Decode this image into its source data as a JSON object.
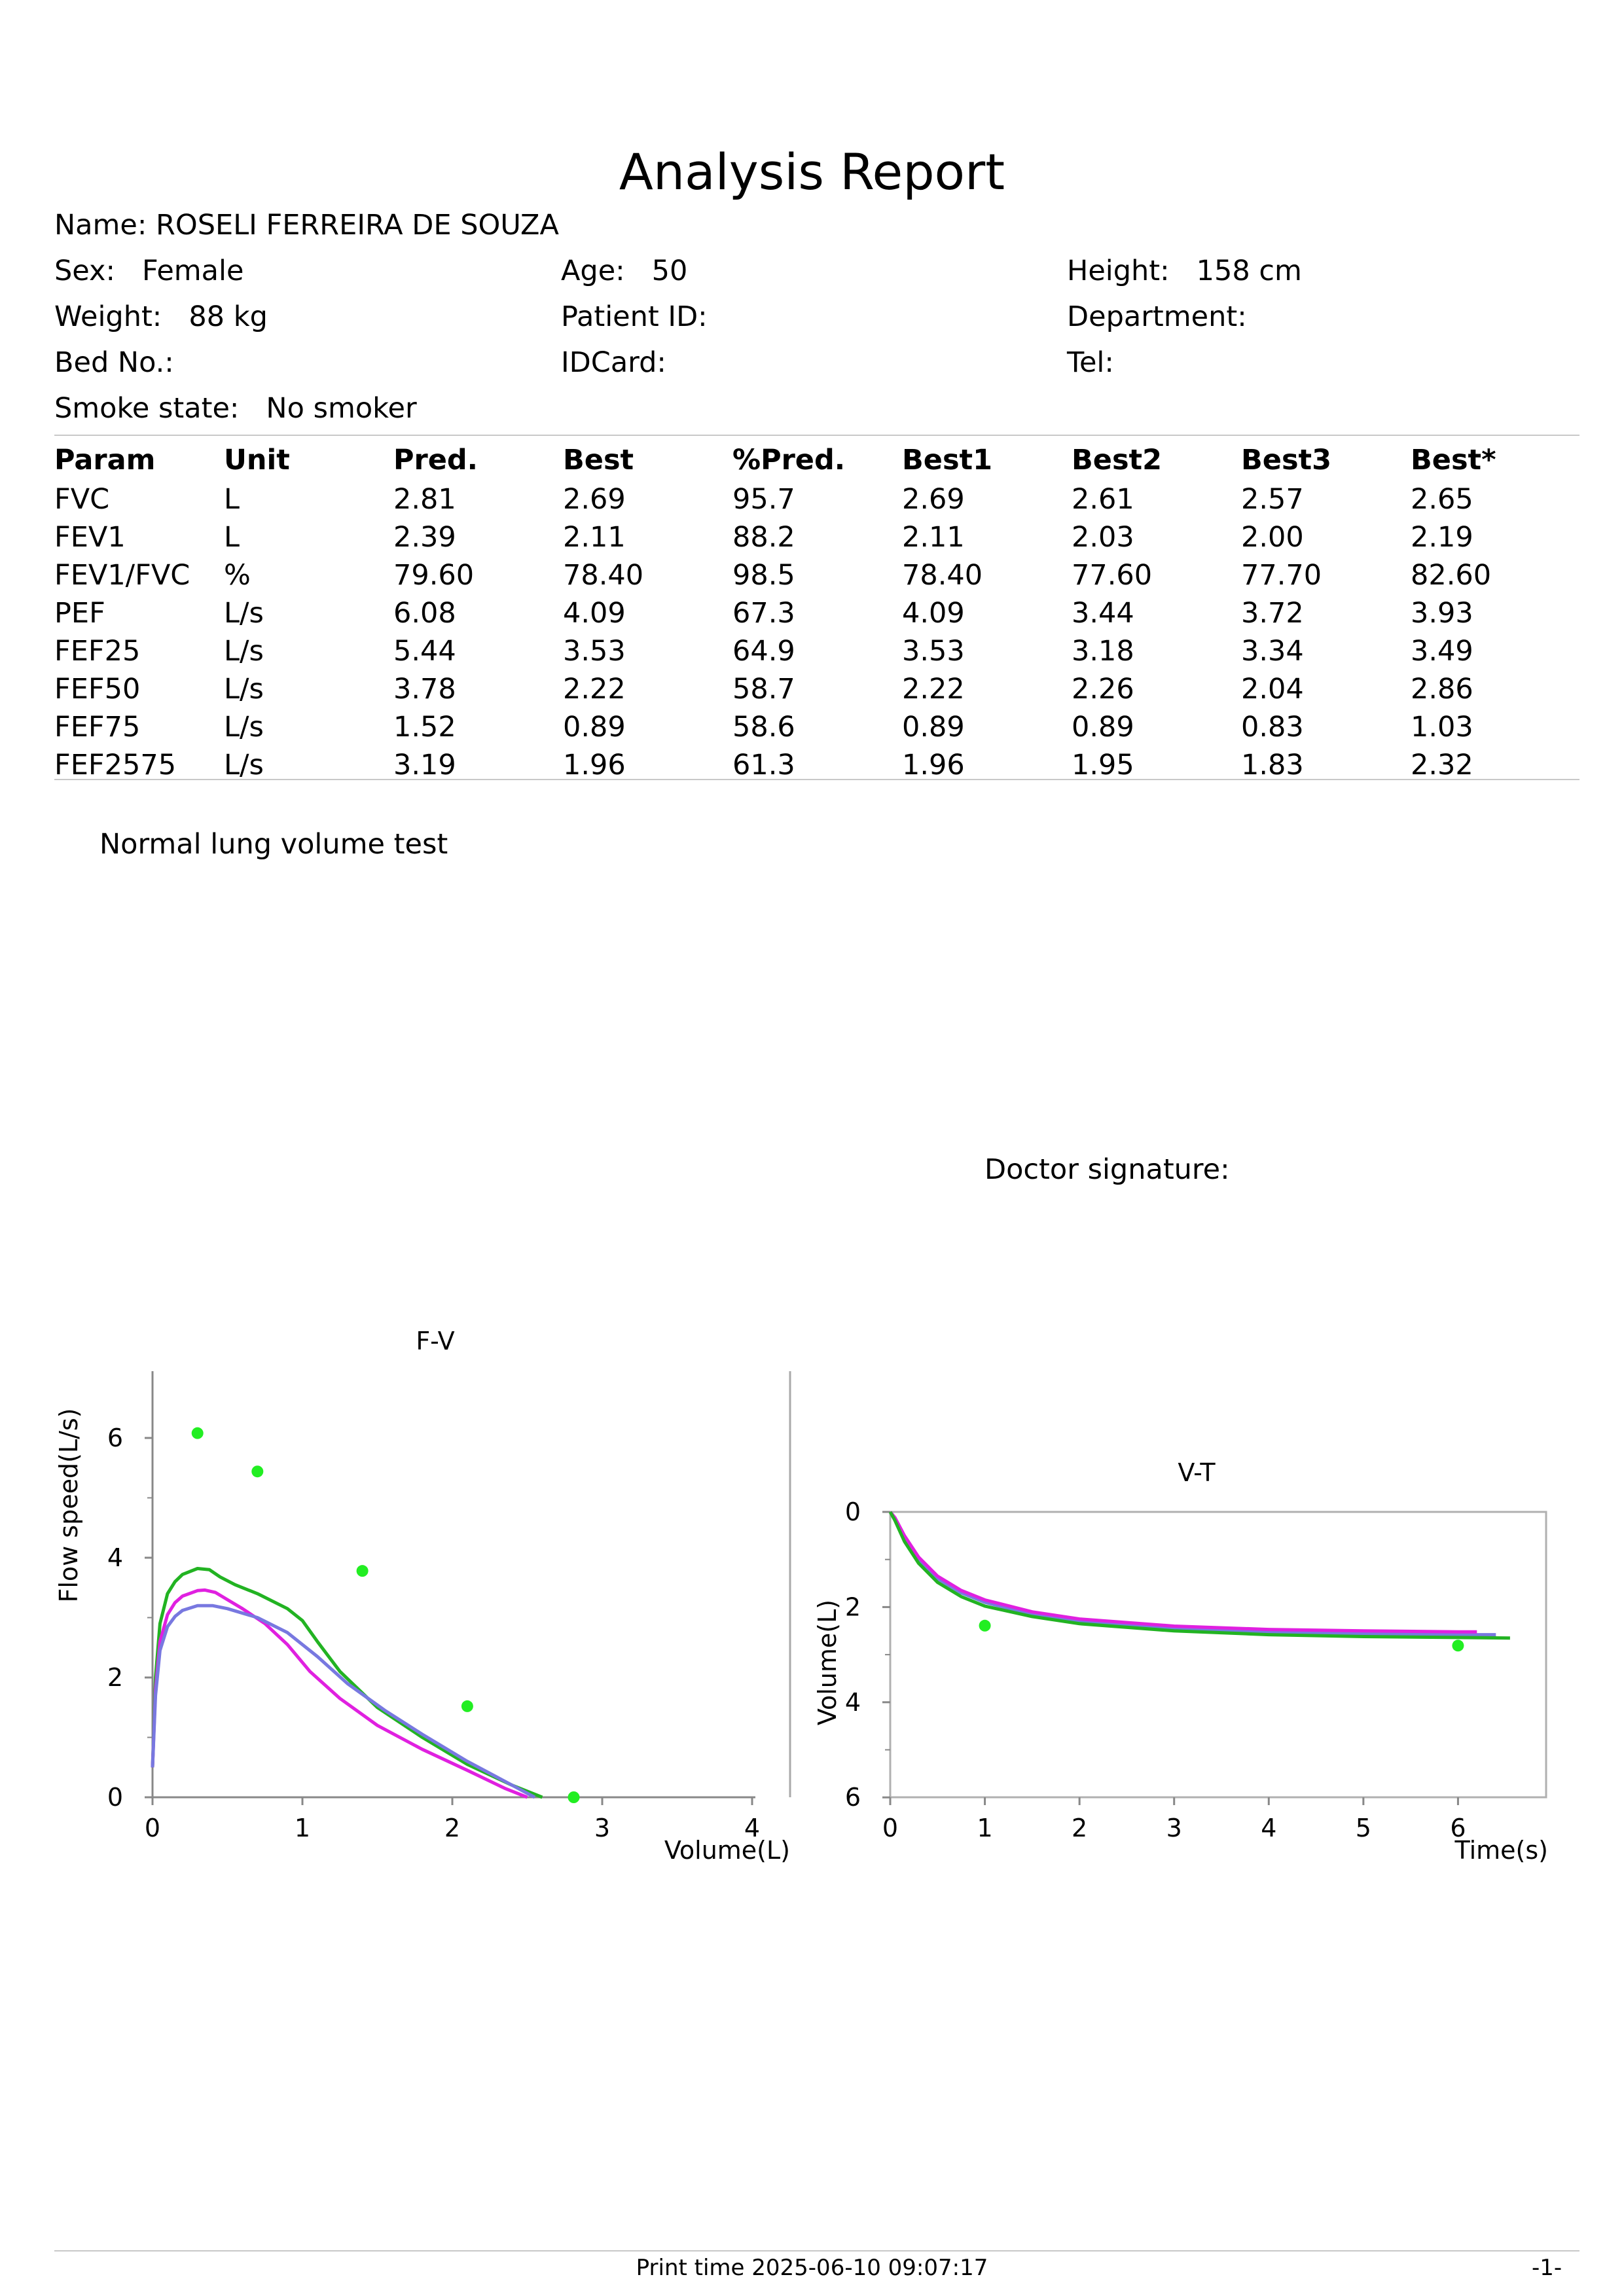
{
  "report": {
    "title": "Analysis Report",
    "name_label": "Name:",
    "name": "ROSELI FERREIRA DE SOUZA",
    "sex_label": "Sex:",
    "sex": "Female",
    "age_label": "Age:",
    "age": "50",
    "height_label": "Height:",
    "height": "158 cm",
    "weight_label": "Weight:",
    "weight": "88 kg",
    "patient_id_label": "Patient ID:",
    "patient_id": "",
    "department_label": "Department:",
    "department": "",
    "bed_label": "Bed No.:",
    "bed": "",
    "idcard_label": "IDCard:",
    "idcard": "",
    "tel_label": "Tel:",
    "tel": "",
    "smoke_label": "Smoke state:",
    "smoke": "No smoker"
  },
  "table": {
    "headers": [
      "Param",
      "Unit",
      "Pred.",
      "Best",
      "%Pred.",
      "Best1",
      "Best2",
      "Best3",
      "Best*"
    ],
    "rows": [
      [
        "FVC",
        "L",
        "2.81",
        "2.69",
        "95.7",
        "2.69",
        "2.61",
        "2.57",
        "2.65"
      ],
      [
        "FEV1",
        "L",
        "2.39",
        "2.11",
        "88.2",
        "2.11",
        "2.03",
        "2.00",
        "2.19"
      ],
      [
        "FEV1/FVC",
        "%",
        "79.60",
        "78.40",
        "98.5",
        "78.40",
        "77.60",
        "77.70",
        "82.60"
      ],
      [
        "PEF",
        "L/s",
        "6.08",
        "4.09",
        "67.3",
        "4.09",
        "3.44",
        "3.72",
        "3.93"
      ],
      [
        "FEF25",
        "L/s",
        "5.44",
        "3.53",
        "64.9",
        "3.53",
        "3.18",
        "3.34",
        "3.49"
      ],
      [
        "FEF50",
        "L/s",
        "3.78",
        "2.22",
        "58.7",
        "2.22",
        "2.26",
        "2.04",
        "2.86"
      ],
      [
        "FEF75",
        "L/s",
        "1.52",
        "0.89",
        "58.6",
        "0.89",
        "0.89",
        "0.83",
        "1.03"
      ],
      [
        "FEF2575",
        "L/s",
        "3.19",
        "1.96",
        "61.3",
        "1.96",
        "1.95",
        "1.83",
        "2.32"
      ]
    ]
  },
  "conclusion": "Normal lung volume test",
  "doctor_signature_label": "Doctor signature:",
  "footer": {
    "print_time": "Print time 2025-06-10 09:07:17",
    "page": "-1-"
  },
  "colors": {
    "green": "#22b322",
    "magenta": "#e020e0",
    "blue": "#7878e0",
    "marker": "#22ee22"
  },
  "chart_data": [
    {
      "type": "line",
      "title": "F-V",
      "xlabel": "Volume(L)",
      "ylabel": "Flow speed(L/s)",
      "xlim": [
        0,
        4
      ],
      "ylim": [
        0,
        7
      ],
      "xticks": [
        "0",
        "1",
        "2",
        "3",
        "4"
      ],
      "yticks": [
        "0",
        "2",
        "4",
        "6"
      ],
      "grid": false,
      "series": [
        {
          "color": "green",
          "x": [
            0,
            0.02,
            0.05,
            0.1,
            0.15,
            0.2,
            0.3,
            0.38,
            0.45,
            0.55,
            0.7,
            0.9,
            1.0,
            1.1,
            1.25,
            1.5,
            1.8,
            2.1,
            2.4,
            2.6
          ],
          "y": [
            0.5,
            2.0,
            2.9,
            3.4,
            3.6,
            3.72,
            3.82,
            3.8,
            3.68,
            3.55,
            3.4,
            3.15,
            2.95,
            2.6,
            2.1,
            1.5,
            1.0,
            0.55,
            0.2,
            0.0
          ]
        },
        {
          "color": "magenta",
          "x": [
            0,
            0.02,
            0.05,
            0.1,
            0.15,
            0.2,
            0.3,
            0.35,
            0.42,
            0.5,
            0.6,
            0.75,
            0.9,
            1.05,
            1.25,
            1.5,
            1.8,
            2.1,
            2.35,
            2.5
          ],
          "y": [
            0.5,
            1.8,
            2.6,
            3.05,
            3.25,
            3.36,
            3.45,
            3.46,
            3.42,
            3.3,
            3.15,
            2.9,
            2.55,
            2.1,
            1.65,
            1.2,
            0.8,
            0.45,
            0.15,
            0.0
          ]
        },
        {
          "color": "blue",
          "x": [
            0,
            0.02,
            0.05,
            0.1,
            0.15,
            0.2,
            0.3,
            0.4,
            0.5,
            0.7,
            0.9,
            1.1,
            1.3,
            1.55,
            1.8,
            2.1,
            2.4,
            2.55
          ],
          "y": [
            0.5,
            1.7,
            2.45,
            2.85,
            3.02,
            3.12,
            3.2,
            3.2,
            3.15,
            3.0,
            2.75,
            2.35,
            1.9,
            1.45,
            1.05,
            0.6,
            0.2,
            0.0
          ]
        }
      ],
      "markers": {
        "color": "marker",
        "x": [
          0.3,
          0.7,
          1.4,
          2.1,
          2.81
        ],
        "y": [
          6.08,
          5.44,
          3.78,
          1.52,
          0.0
        ]
      }
    },
    {
      "type": "line",
      "title": "V-T",
      "xlabel": "Time(s)",
      "ylabel": "Volume(L)",
      "xlim": [
        0,
        7
      ],
      "ylim": [
        0,
        6
      ],
      "y_inverted": true,
      "xticks": [
        "0",
        "1",
        "2",
        "3",
        "4",
        "5",
        "6"
      ],
      "yticks": [
        "0",
        "2",
        "4",
        "6"
      ],
      "grid": false,
      "series": [
        {
          "color": "blue",
          "x": [
            0,
            0.05,
            0.15,
            0.3,
            0.5,
            0.75,
            1.0,
            1.5,
            2.0,
            3.0,
            4.0,
            5.0,
            6.0,
            6.4
          ],
          "y": [
            0,
            0.15,
            0.55,
            1.0,
            1.4,
            1.7,
            1.9,
            2.15,
            2.3,
            2.45,
            2.53,
            2.56,
            2.58,
            2.58
          ]
        },
        {
          "color": "magenta",
          "x": [
            0,
            0.05,
            0.15,
            0.3,
            0.5,
            0.75,
            1.0,
            1.5,
            2.0,
            3.0,
            4.0,
            5.0,
            6.0,
            6.2
          ],
          "y": [
            0,
            0.12,
            0.5,
            0.95,
            1.35,
            1.65,
            1.85,
            2.1,
            2.25,
            2.4,
            2.47,
            2.5,
            2.52,
            2.52
          ]
        },
        {
          "color": "green",
          "x": [
            0,
            0.05,
            0.15,
            0.3,
            0.5,
            0.75,
            1.0,
            1.5,
            2.0,
            3.0,
            4.0,
            5.0,
            6.0,
            6.55
          ],
          "y": [
            0,
            0.18,
            0.62,
            1.08,
            1.48,
            1.78,
            1.98,
            2.2,
            2.35,
            2.5,
            2.58,
            2.62,
            2.64,
            2.65
          ]
        }
      ],
      "markers": {
        "color": "marker",
        "x": [
          1,
          6
        ],
        "y": [
          2.39,
          2.81
        ]
      }
    }
  ]
}
